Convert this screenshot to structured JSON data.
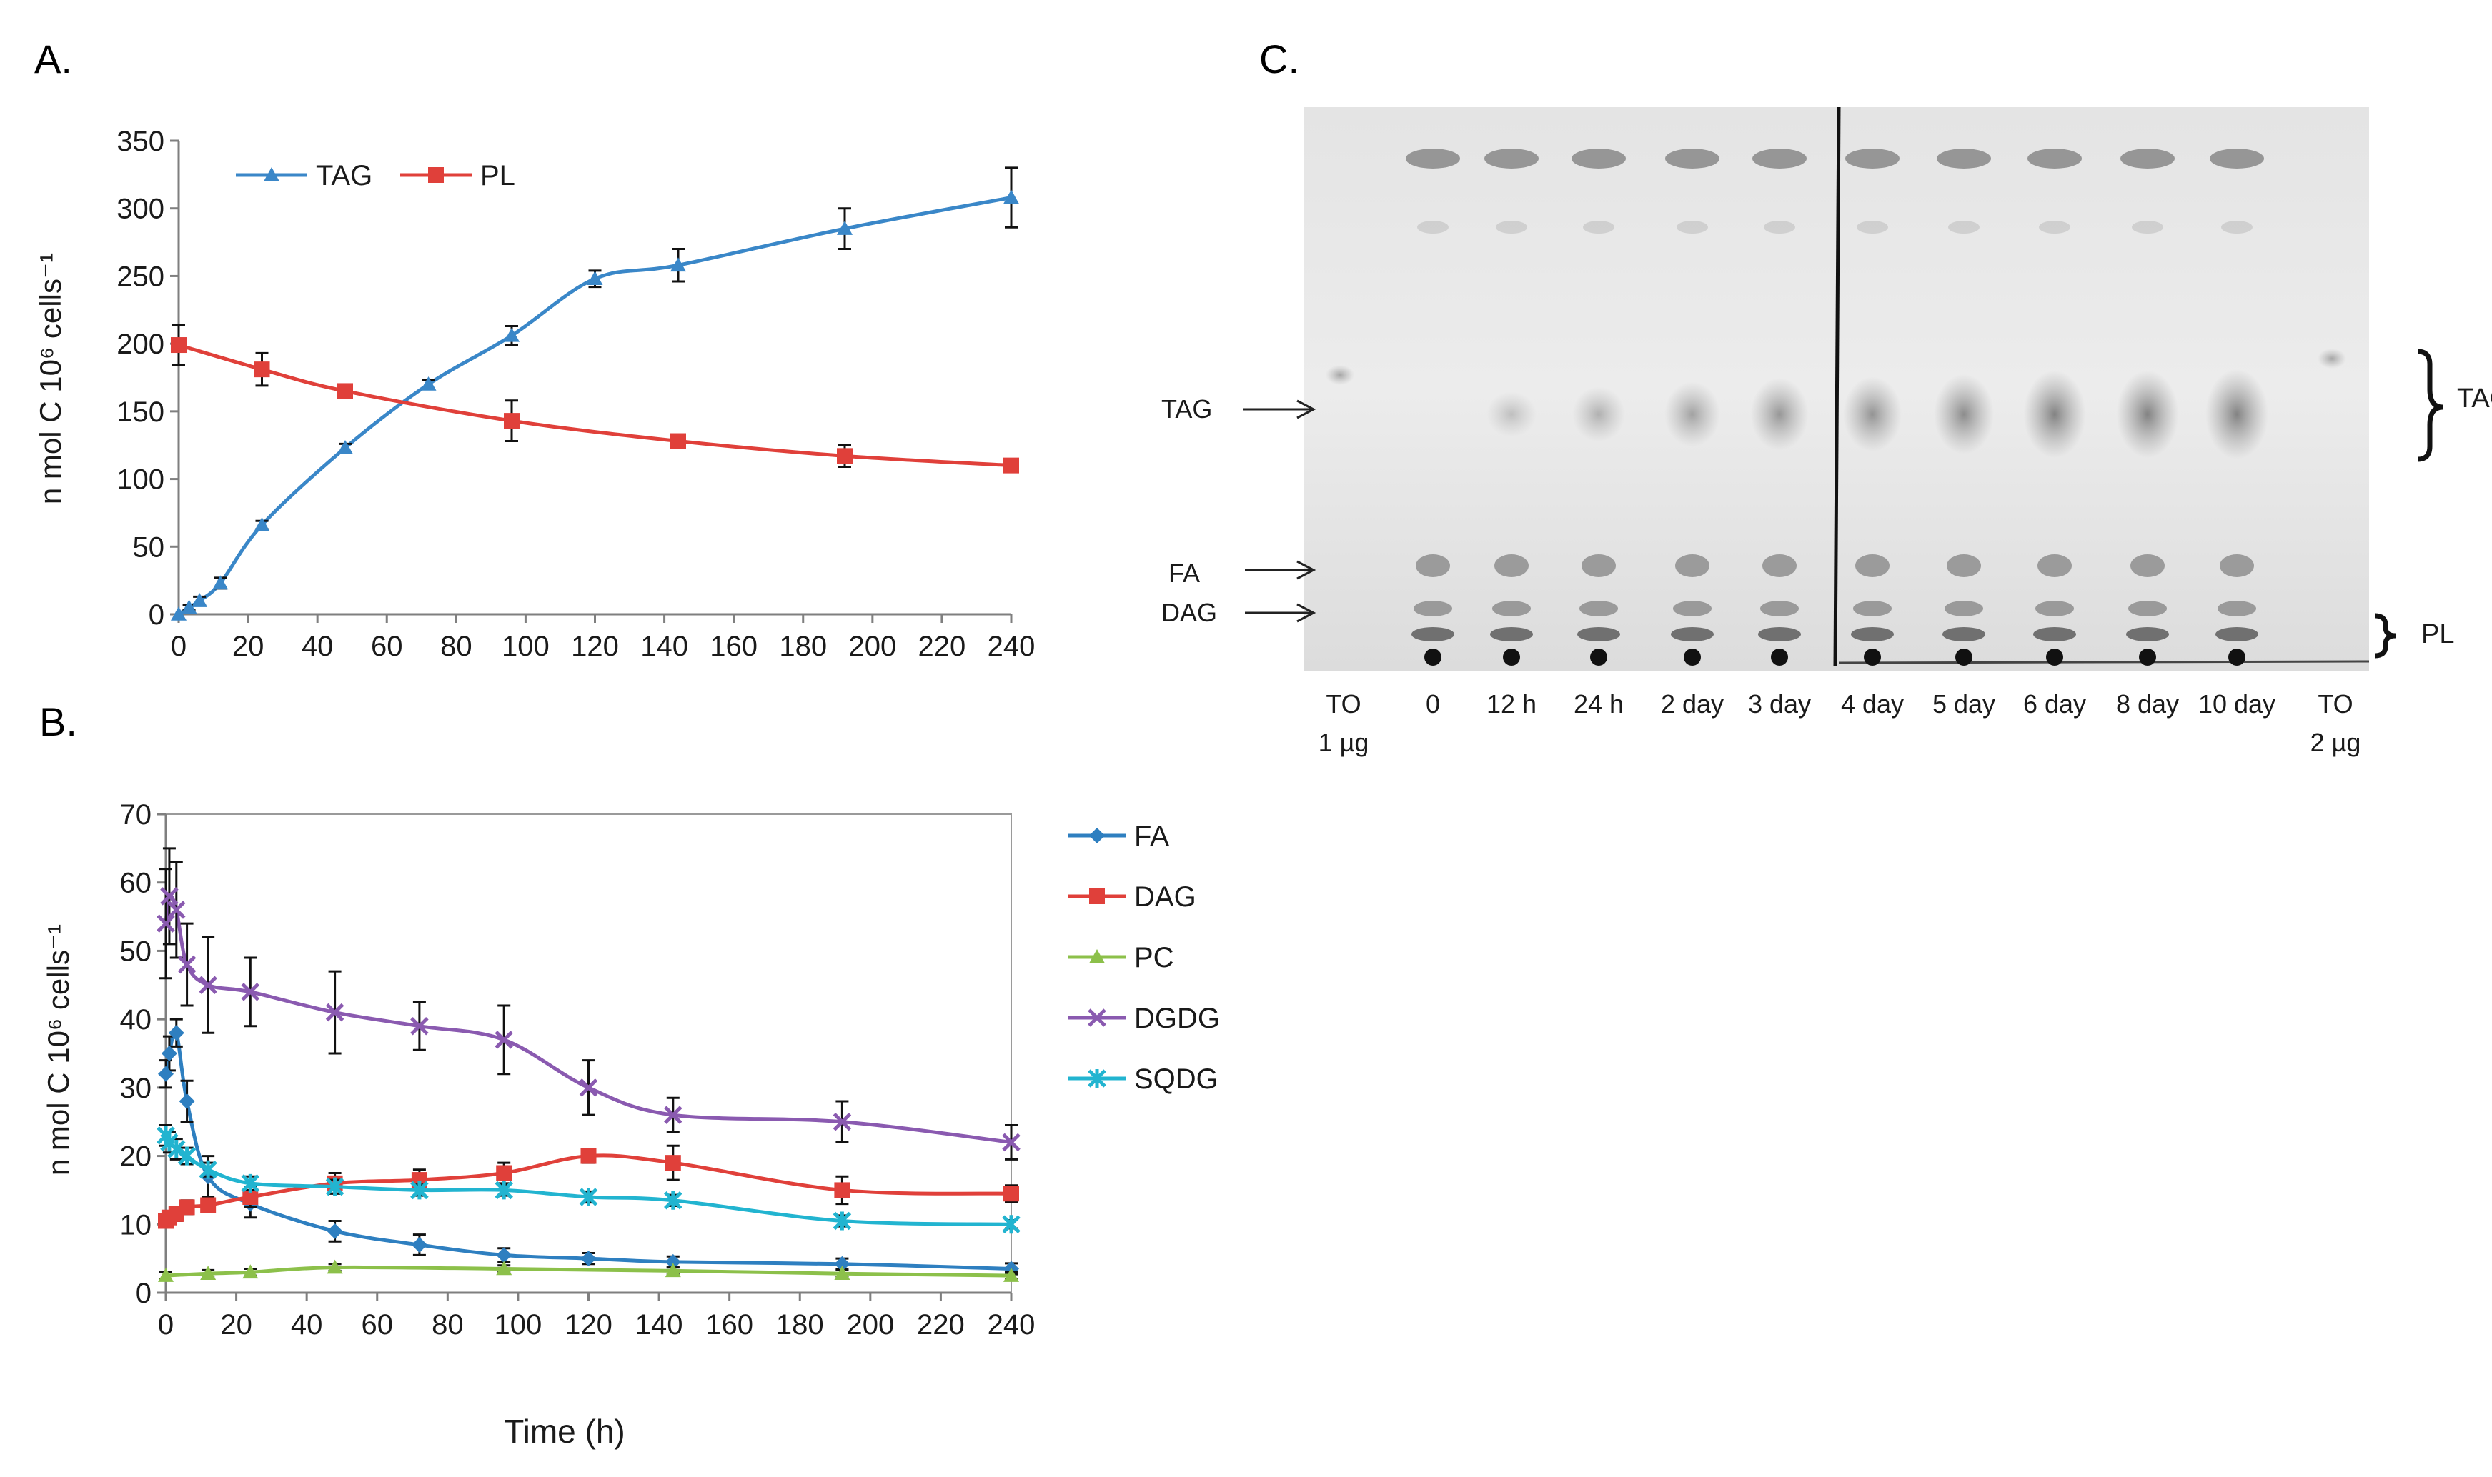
{
  "panels": {
    "a_label": "A.",
    "b_label": "B.",
    "c_label": "C."
  },
  "chart_data": [
    {
      "id": "A",
      "type": "line",
      "xlabel": "",
      "ylabel": "n mol C  10⁶ cells⁻¹",
      "xlim": [
        0,
        240
      ],
      "ylim": [
        0,
        350
      ],
      "xticks": [
        0,
        20,
        40,
        60,
        80,
        100,
        120,
        140,
        160,
        180,
        200,
        220,
        240
      ],
      "yticks": [
        0,
        50,
        100,
        150,
        200,
        250,
        300,
        350
      ],
      "legend_position": "top-left",
      "series": [
        {
          "name": "TAG",
          "color": "#3a87c8",
          "marker": "triangle",
          "x": [
            0,
            3,
            6,
            12,
            24,
            48,
            72,
            96,
            120,
            144,
            192,
            240
          ],
          "y": [
            0,
            5,
            10,
            23,
            66,
            123,
            170,
            206,
            248,
            258,
            285,
            308
          ],
          "err": [
            0,
            2,
            3,
            4,
            3,
            3,
            3,
            7,
            6,
            12,
            15,
            22
          ]
        },
        {
          "name": "PL",
          "color": "#e0403a",
          "marker": "square",
          "x": [
            0,
            24,
            48,
            96,
            144,
            192,
            240
          ],
          "y": [
            199,
            181,
            165,
            143,
            128,
            117,
            110
          ],
          "err": [
            15,
            12,
            5,
            15,
            4,
            8,
            3
          ]
        }
      ]
    },
    {
      "id": "B",
      "type": "line",
      "xlabel": "Time (h)",
      "ylabel": "n mol C  10⁶ cells⁻¹",
      "xlim": [
        0,
        240
      ],
      "ylim": [
        0,
        70
      ],
      "xticks": [
        0,
        20,
        40,
        60,
        80,
        100,
        120,
        140,
        160,
        180,
        200,
        220,
        240
      ],
      "yticks": [
        0,
        10,
        20,
        30,
        40,
        50,
        60,
        70
      ],
      "legend_position": "right",
      "series": [
        {
          "name": "FA",
          "color": "#2e7fc0",
          "marker": "diamond",
          "x": [
            0,
            1,
            3,
            6,
            12,
            24,
            48,
            72,
            96,
            120,
            144,
            192,
            240
          ],
          "y": [
            32,
            35,
            38,
            28,
            17,
            13,
            9,
            7,
            5.5,
            5,
            4.5,
            4.2,
            3.5
          ],
          "err": [
            2,
            2.5,
            2,
            3,
            3,
            2,
            1.5,
            1.5,
            1,
            0.8,
            0.8,
            0.8,
            0.8
          ]
        },
        {
          "name": "DAG",
          "color": "#e0403a",
          "marker": "square",
          "x": [
            0,
            1,
            3,
            6,
            12,
            24,
            48,
            72,
            96,
            120,
            144,
            192,
            240
          ],
          "y": [
            10.5,
            11,
            11.5,
            12.5,
            12.8,
            14,
            16,
            16.5,
            17.5,
            20,
            19,
            15,
            14.5
          ],
          "err": [
            0.8,
            0.8,
            1,
            1,
            1,
            1.5,
            1.5,
            1.5,
            1.5,
            1,
            2.5,
            2,
            1.2
          ]
        },
        {
          "name": "PC",
          "color": "#8cc04a",
          "marker": "triangle",
          "x": [
            0,
            12,
            24,
            48,
            96,
            144,
            192,
            240
          ],
          "y": [
            2.5,
            2.8,
            3,
            3.7,
            3.5,
            3.2,
            2.8,
            2.5
          ],
          "err": [
            0.5,
            0.5,
            0.5,
            0.5,
            0.5,
            0.5,
            0.5,
            0.5
          ]
        },
        {
          "name": "DGDG",
          "color": "#8a5ab0",
          "marker": "x",
          "x": [
            0,
            1,
            3,
            6,
            12,
            24,
            48,
            72,
            96,
            120,
            144,
            192,
            240
          ],
          "y": [
            54,
            58,
            56,
            48,
            45,
            44,
            41,
            39,
            37,
            30,
            26,
            25,
            22
          ],
          "err": [
            8,
            7,
            7,
            6,
            7,
            5,
            6,
            3.5,
            5,
            4,
            2.5,
            3,
            2.5
          ]
        },
        {
          "name": "SQDG",
          "color": "#22b4d0",
          "marker": "star",
          "x": [
            0,
            1,
            3,
            6,
            12,
            24,
            48,
            72,
            96,
            120,
            144,
            192,
            240
          ],
          "y": [
            23,
            22,
            21,
            20,
            18,
            16,
            15.5,
            15,
            15,
            14,
            13.5,
            10.5,
            10
          ],
          "err": [
            1.5,
            1.5,
            1.5,
            1.2,
            1,
            1,
            1,
            0.8,
            0.8,
            0.8,
            0.8,
            0.8,
            0.6
          ]
        }
      ]
    }
  ],
  "tlc": {
    "left_labels": [
      "TAG",
      "FA",
      "DAG"
    ],
    "right_labels": [
      "TAG",
      "PL"
    ],
    "lanes": [
      {
        "line1": "TO",
        "line2": "1 µg"
      },
      {
        "line1": "0",
        "line2": ""
      },
      {
        "line1": "12 h",
        "line2": ""
      },
      {
        "line1": "24 h",
        "line2": ""
      },
      {
        "line1": "2 day",
        "line2": ""
      },
      {
        "line1": "3 day",
        "line2": ""
      },
      {
        "line1": "4 day",
        "line2": ""
      },
      {
        "line1": "5 day",
        "line2": ""
      },
      {
        "line1": "6 day",
        "line2": ""
      },
      {
        "line1": "8 day",
        "line2": ""
      },
      {
        "line1": "10 day",
        "line2": ""
      },
      {
        "line1": "TO",
        "line2": "2 µg"
      }
    ],
    "tag_intensity": [
      0.45,
      0.0,
      0.1,
      0.3,
      0.5,
      0.65,
      0.7,
      0.8,
      0.95,
      0.95,
      1.0,
      0.45
    ]
  }
}
